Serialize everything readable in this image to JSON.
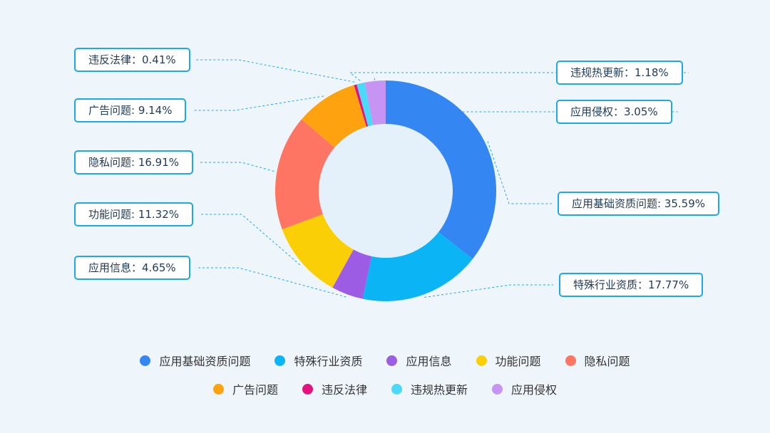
{
  "chart_data": {
    "type": "pie",
    "donut": true,
    "categories": [
      "应用基础资质问题",
      "特殊行业资质",
      "应用信息",
      "功能问题",
      "隐私问题",
      "广告问题",
      "违反法律",
      "违规热更新",
      "应用侵权"
    ],
    "values": [
      35.59,
      17.77,
      4.65,
      11.32,
      16.91,
      9.14,
      0.41,
      1.18,
      3.05
    ],
    "unit": "%",
    "colors": [
      "#3486f2",
      "#0ab4f5",
      "#9c5ce3",
      "#fbcf06",
      "#fe7563",
      "#fea30f",
      "#e3127e",
      "#4bd9f8",
      "#c694f3"
    ],
    "data_labels": [
      "应用基础资质问题: 35.59%",
      "特殊行业资质：17.77%",
      "应用信息：4.65%",
      "功能问题: 11.32%",
      "隐私问题: 16.91%",
      "广告问题: 9.14%",
      "违反法律：0.41%",
      "违规热更新：1.18%",
      "应用侵权：3.05%"
    ],
    "legend_position": "bottom"
  }
}
